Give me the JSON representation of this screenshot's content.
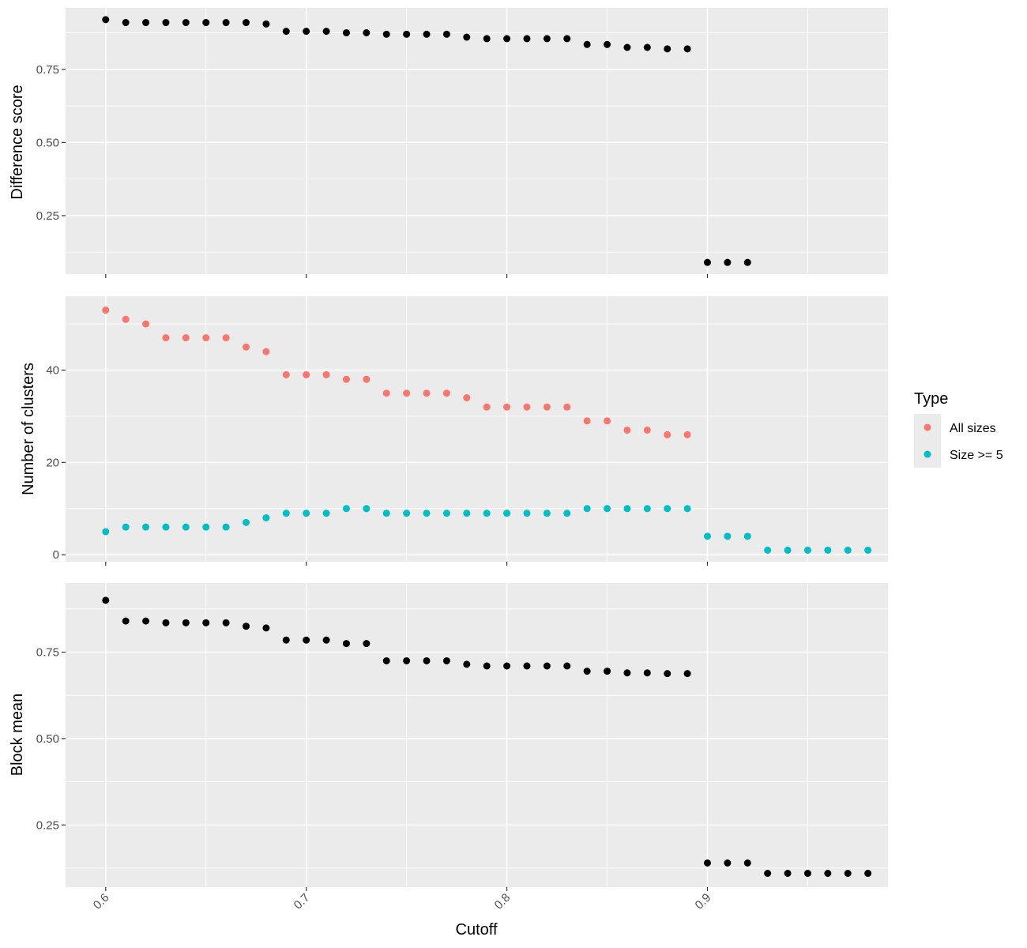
{
  "chart_data": [
    {
      "type": "scatter",
      "ylabel": "Difference score",
      "xlabel": "Cutoff",
      "xlim": [
        0.58,
        0.99
      ],
      "ylim": [
        0.05,
        0.96
      ],
      "yticks": [
        0.25,
        0.5,
        0.75
      ],
      "ytick_labels": [
        "0.25",
        "0.50",
        "0.75"
      ],
      "series": [
        {
          "color": "#000000",
          "x": [
            0.6,
            0.61,
            0.62,
            0.63,
            0.64,
            0.65,
            0.66,
            0.67,
            0.68,
            0.69,
            0.7,
            0.71,
            0.72,
            0.73,
            0.74,
            0.75,
            0.76,
            0.77,
            0.78,
            0.79,
            0.8,
            0.81,
            0.82,
            0.83,
            0.84,
            0.85,
            0.86,
            0.87,
            0.88,
            0.89,
            0.9,
            0.91,
            0.92
          ],
          "y": [
            0.92,
            0.91,
            0.91,
            0.91,
            0.91,
            0.91,
            0.91,
            0.91,
            0.905,
            0.88,
            0.88,
            0.88,
            0.875,
            0.875,
            0.87,
            0.87,
            0.87,
            0.87,
            0.86,
            0.855,
            0.855,
            0.855,
            0.855,
            0.855,
            0.835,
            0.835,
            0.825,
            0.825,
            0.82,
            0.82,
            0.09,
            0.09,
            0.09
          ]
        }
      ]
    },
    {
      "type": "scatter",
      "ylabel": "Number of clusters",
      "xlabel": "Cutoff",
      "xlim": [
        0.58,
        0.99
      ],
      "ylim": [
        -1.5,
        56
      ],
      "yticks": [
        0,
        20,
        40
      ],
      "ytick_labels": [
        "0",
        "20",
        "40"
      ],
      "series": [
        {
          "name": "All sizes",
          "color": "#F8766D",
          "x": [
            0.6,
            0.61,
            0.62,
            0.63,
            0.64,
            0.65,
            0.66,
            0.67,
            0.68,
            0.69,
            0.7,
            0.71,
            0.72,
            0.73,
            0.74,
            0.75,
            0.76,
            0.77,
            0.78,
            0.79,
            0.8,
            0.81,
            0.82,
            0.83,
            0.84,
            0.85,
            0.86,
            0.87,
            0.88,
            0.89
          ],
          "y": [
            53,
            51,
            50,
            47,
            47,
            47,
            47,
            45,
            44,
            39,
            39,
            39,
            38,
            38,
            35,
            35,
            35,
            35,
            34,
            32,
            32,
            32,
            32,
            32,
            29,
            29,
            27,
            27,
            26,
            26
          ]
        },
        {
          "name": "Size >= 5",
          "color": "#00BFC4",
          "x": [
            0.6,
            0.61,
            0.62,
            0.63,
            0.64,
            0.65,
            0.66,
            0.67,
            0.68,
            0.69,
            0.7,
            0.71,
            0.72,
            0.73,
            0.74,
            0.75,
            0.76,
            0.77,
            0.78,
            0.79,
            0.8,
            0.81,
            0.82,
            0.83,
            0.84,
            0.85,
            0.86,
            0.87,
            0.88,
            0.89,
            0.9,
            0.91,
            0.92,
            0.93,
            0.94,
            0.95,
            0.96,
            0.97,
            0.98
          ],
          "y": [
            5,
            6,
            6,
            6,
            6,
            6,
            6,
            7,
            8,
            9,
            9,
            9,
            10,
            10,
            9,
            9,
            9,
            9,
            9,
            9,
            9,
            9,
            9,
            9,
            10,
            10,
            10,
            10,
            10,
            10,
            4,
            4,
            4,
            1,
            1,
            1,
            1,
            1,
            1
          ]
        }
      ]
    },
    {
      "type": "scatter",
      "ylabel": "Block mean",
      "xlabel": "Cutoff",
      "xlim": [
        0.58,
        0.99
      ],
      "ylim": [
        0.07,
        0.95
      ],
      "yticks": [
        0.25,
        0.5,
        0.75
      ],
      "ytick_labels": [
        "0.25",
        "0.50",
        "0.75"
      ],
      "xticks": [
        0.6,
        0.7,
        0.8,
        0.9
      ],
      "xtick_labels": [
        "0.6",
        "0.7",
        "0.8",
        "0.9"
      ],
      "series": [
        {
          "color": "#000000",
          "x": [
            0.6,
            0.61,
            0.62,
            0.63,
            0.64,
            0.65,
            0.66,
            0.67,
            0.68,
            0.69,
            0.7,
            0.71,
            0.72,
            0.73,
            0.74,
            0.75,
            0.76,
            0.77,
            0.78,
            0.79,
            0.8,
            0.81,
            0.82,
            0.83,
            0.84,
            0.85,
            0.86,
            0.87,
            0.88,
            0.89,
            0.9,
            0.91,
            0.92,
            0.93,
            0.94,
            0.95,
            0.96,
            0.97,
            0.98
          ],
          "y": [
            0.9,
            0.84,
            0.84,
            0.835,
            0.835,
            0.835,
            0.835,
            0.825,
            0.82,
            0.785,
            0.785,
            0.785,
            0.775,
            0.775,
            0.725,
            0.725,
            0.725,
            0.725,
            0.715,
            0.71,
            0.71,
            0.71,
            0.71,
            0.71,
            0.695,
            0.695,
            0.69,
            0.69,
            0.688,
            0.688,
            0.14,
            0.14,
            0.14,
            0.11,
            0.11,
            0.11,
            0.11,
            0.11,
            0.11
          ]
        }
      ]
    }
  ],
  "x_axis_title": "Cutoff",
  "legend": {
    "title": "Type",
    "items": [
      {
        "label": "All sizes",
        "color": "#F8766D"
      },
      {
        "label": "Size >= 5",
        "color": "#00BFC4"
      }
    ]
  },
  "colors": {
    "panel_background": "#EBEBEB",
    "grid_major": "#FFFFFF",
    "tick": "#333333"
  }
}
